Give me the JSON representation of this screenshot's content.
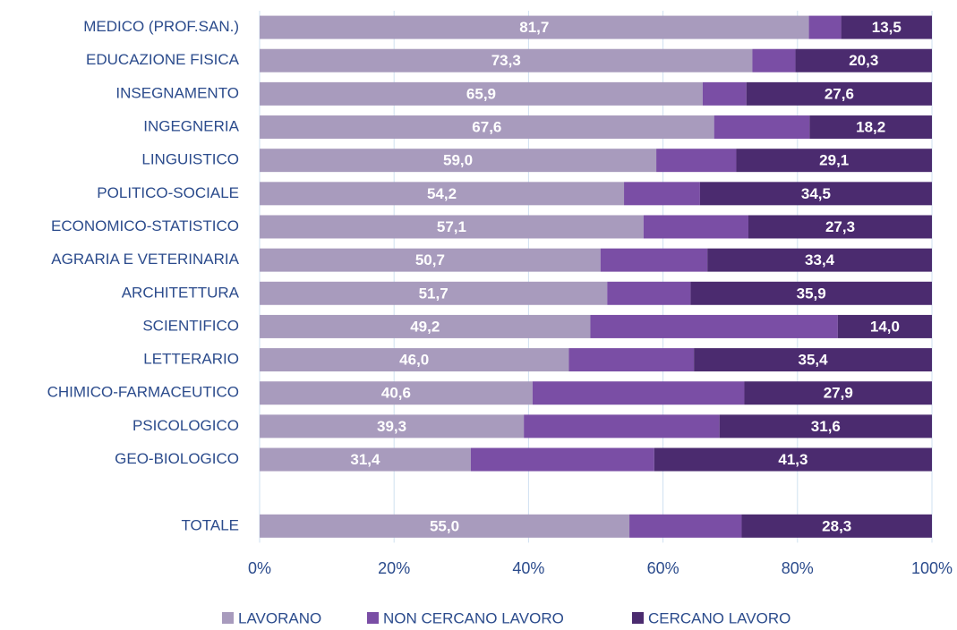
{
  "chart_data": {
    "type": "stacked-bar-horizontal",
    "categories": [
      "MEDICO (PROF.SAN.)",
      "EDUCAZIONE FISICA",
      "INSEGNAMENTO",
      "INGEGNERIA",
      "LINGUISTICO",
      "POLITICO-SOCIALE",
      "ECONOMICO-STATISTICO",
      "AGRARIA E VETERINARIA",
      "ARCHITETTURA",
      "SCIENTIFICO",
      "LETTERARIO",
      "CHIMICO-FARMACEUTICO",
      "PSICOLOGICO",
      "GEO-BIOLOGICO",
      null,
      "TOTALE"
    ],
    "series": [
      {
        "name": "LAVORANO",
        "color": "#a89bbd",
        "values": [
          81.7,
          73.3,
          65.9,
          67.6,
          59.0,
          54.2,
          57.1,
          50.7,
          51.7,
          49.2,
          46.0,
          40.6,
          39.3,
          31.4,
          null,
          55.0
        ],
        "value_labels": [
          "81,7",
          "73,3",
          "65,9",
          "67,6",
          "59,0",
          "54,2",
          "57,1",
          "50,7",
          "51,7",
          "49,2",
          "46,0",
          "40,6",
          "39,3",
          "31,4",
          null,
          "55,0"
        ]
      },
      {
        "name": "NON CERCANO LAVORO",
        "color": "#7a4ea5",
        "values": [
          4.8,
          6.4,
          6.5,
          14.2,
          11.9,
          11.3,
          15.6,
          15.9,
          12.4,
          36.8,
          18.6,
          31.5,
          29.1,
          27.3,
          null,
          16.7
        ]
      },
      {
        "name": "CERCANO LAVORO",
        "color": "#4b2b6f",
        "values": [
          13.5,
          20.3,
          27.6,
          18.2,
          29.1,
          34.5,
          27.3,
          33.4,
          35.9,
          14.0,
          35.4,
          27.9,
          31.6,
          41.3,
          null,
          28.3
        ],
        "value_labels": [
          "13,5",
          "20,3",
          "27,6",
          "18,2",
          "29,1",
          "34,5",
          "27,3",
          "33,4",
          "35,9",
          "14,0",
          "35,4",
          "27,9",
          "31,6",
          "41,3",
          null,
          "28,3"
        ]
      }
    ],
    "xlim": [
      0,
      100
    ],
    "xticks": [
      {
        "value": 0,
        "label": "0%"
      },
      {
        "value": 20,
        "label": "20%"
      },
      {
        "value": 40,
        "label": "40%"
      },
      {
        "value": 60,
        "label": "60%"
      },
      {
        "value": 80,
        "label": "80%"
      },
      {
        "value": 100,
        "label": "100%"
      }
    ],
    "grid": true
  }
}
